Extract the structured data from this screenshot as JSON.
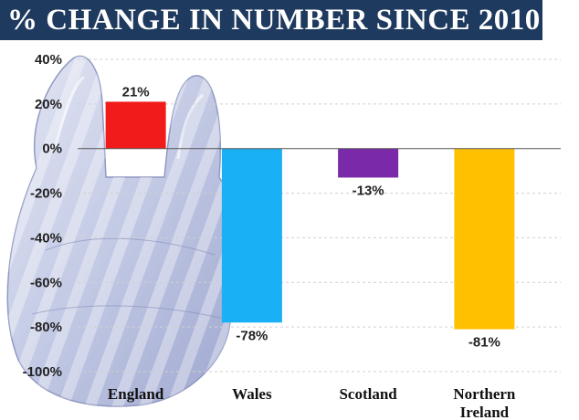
{
  "chart_data": {
    "type": "bar",
    "title": "% CHANGE IN NUMBER SINCE 2010",
    "categories": [
      "England",
      "Wales",
      "Scotland",
      "Northern Ireland"
    ],
    "category_lines": [
      [
        "England"
      ],
      [
        "Wales"
      ],
      [
        "Scotland"
      ],
      [
        "Northern",
        "Ireland"
      ]
    ],
    "values": [
      21,
      -78,
      -13,
      -81
    ],
    "value_labels": [
      "21%",
      "-78%",
      "-13%",
      "-81%"
    ],
    "colors": [
      "#f21b1b",
      "#1ab0f5",
      "#7a2aa8",
      "#ffc000"
    ],
    "ylim": [
      -100,
      40
    ],
    "yticks": [
      40,
      20,
      0,
      -20,
      -40,
      -60,
      -80,
      -100
    ],
    "ytick_labels": [
      "40%",
      "20%",
      "0%",
      "-20%",
      "-40%",
      "-60%",
      "-80%",
      "-100%"
    ],
    "xlabel": "",
    "ylabel": "",
    "grid": true,
    "background_image": "plastic-bag"
  }
}
